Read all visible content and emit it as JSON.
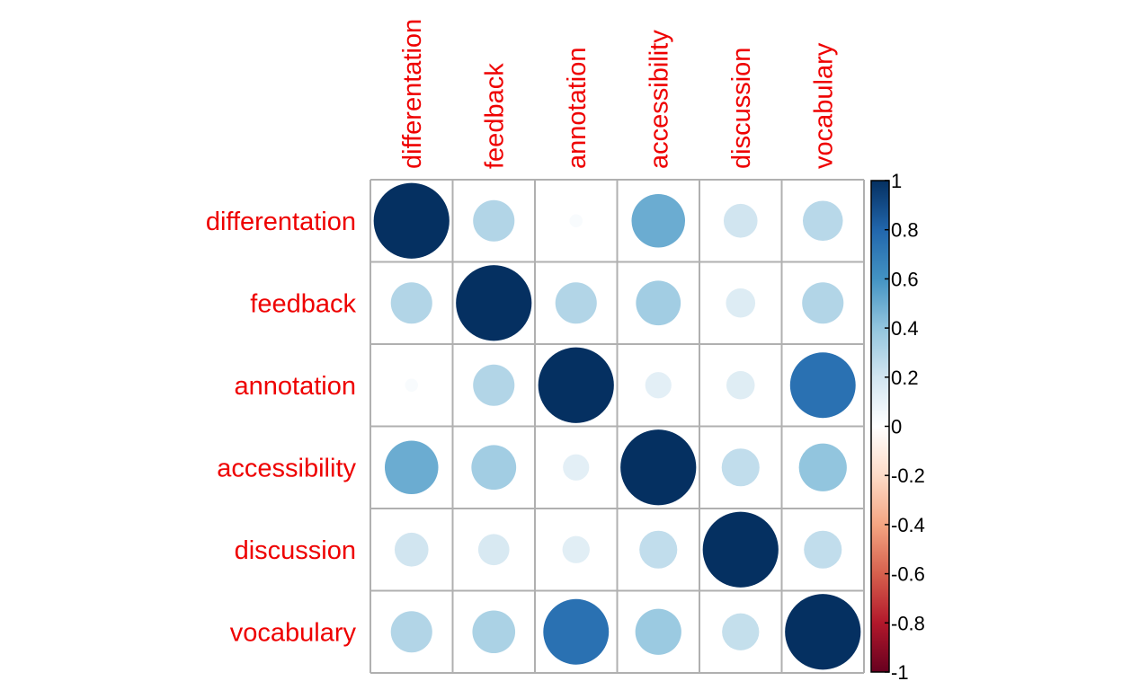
{
  "chart_data": {
    "type": "heatmap",
    "style": "corrplot-circle",
    "title": "",
    "variables": [
      "differentation",
      "feedback",
      "annotation",
      "accessibility",
      "discussion",
      "vocabulary"
    ],
    "matrix": [
      [
        1.0,
        0.3,
        0.03,
        0.5,
        0.2,
        0.28
      ],
      [
        0.3,
        1.0,
        0.3,
        0.35,
        0.15,
        0.3
      ],
      [
        0.03,
        0.3,
        1.0,
        0.12,
        0.14,
        0.75
      ],
      [
        0.5,
        0.35,
        0.12,
        1.0,
        0.25,
        0.4
      ],
      [
        0.2,
        0.17,
        0.13,
        0.25,
        1.0,
        0.25
      ],
      [
        0.3,
        0.32,
        0.75,
        0.37,
        0.24,
        1.0
      ]
    ],
    "colorbar": {
      "range": [
        -1,
        1
      ],
      "ticks": [
        "1",
        "0.8",
        "0.6",
        "0.4",
        "0.2",
        "0",
        "-0.2",
        "-0.4",
        "-0.6",
        "-0.8",
        "-1"
      ]
    },
    "colors": {
      "label": "#ee0000",
      "grid": "#b0b0b0",
      "scale": [
        "#67001f",
        "#b2182b",
        "#d6604d",
        "#f4a582",
        "#fddbc7",
        "#ffffff",
        "#d1e5f0",
        "#92c5de",
        "#4393c3",
        "#2166ac",
        "#053061"
      ]
    }
  }
}
